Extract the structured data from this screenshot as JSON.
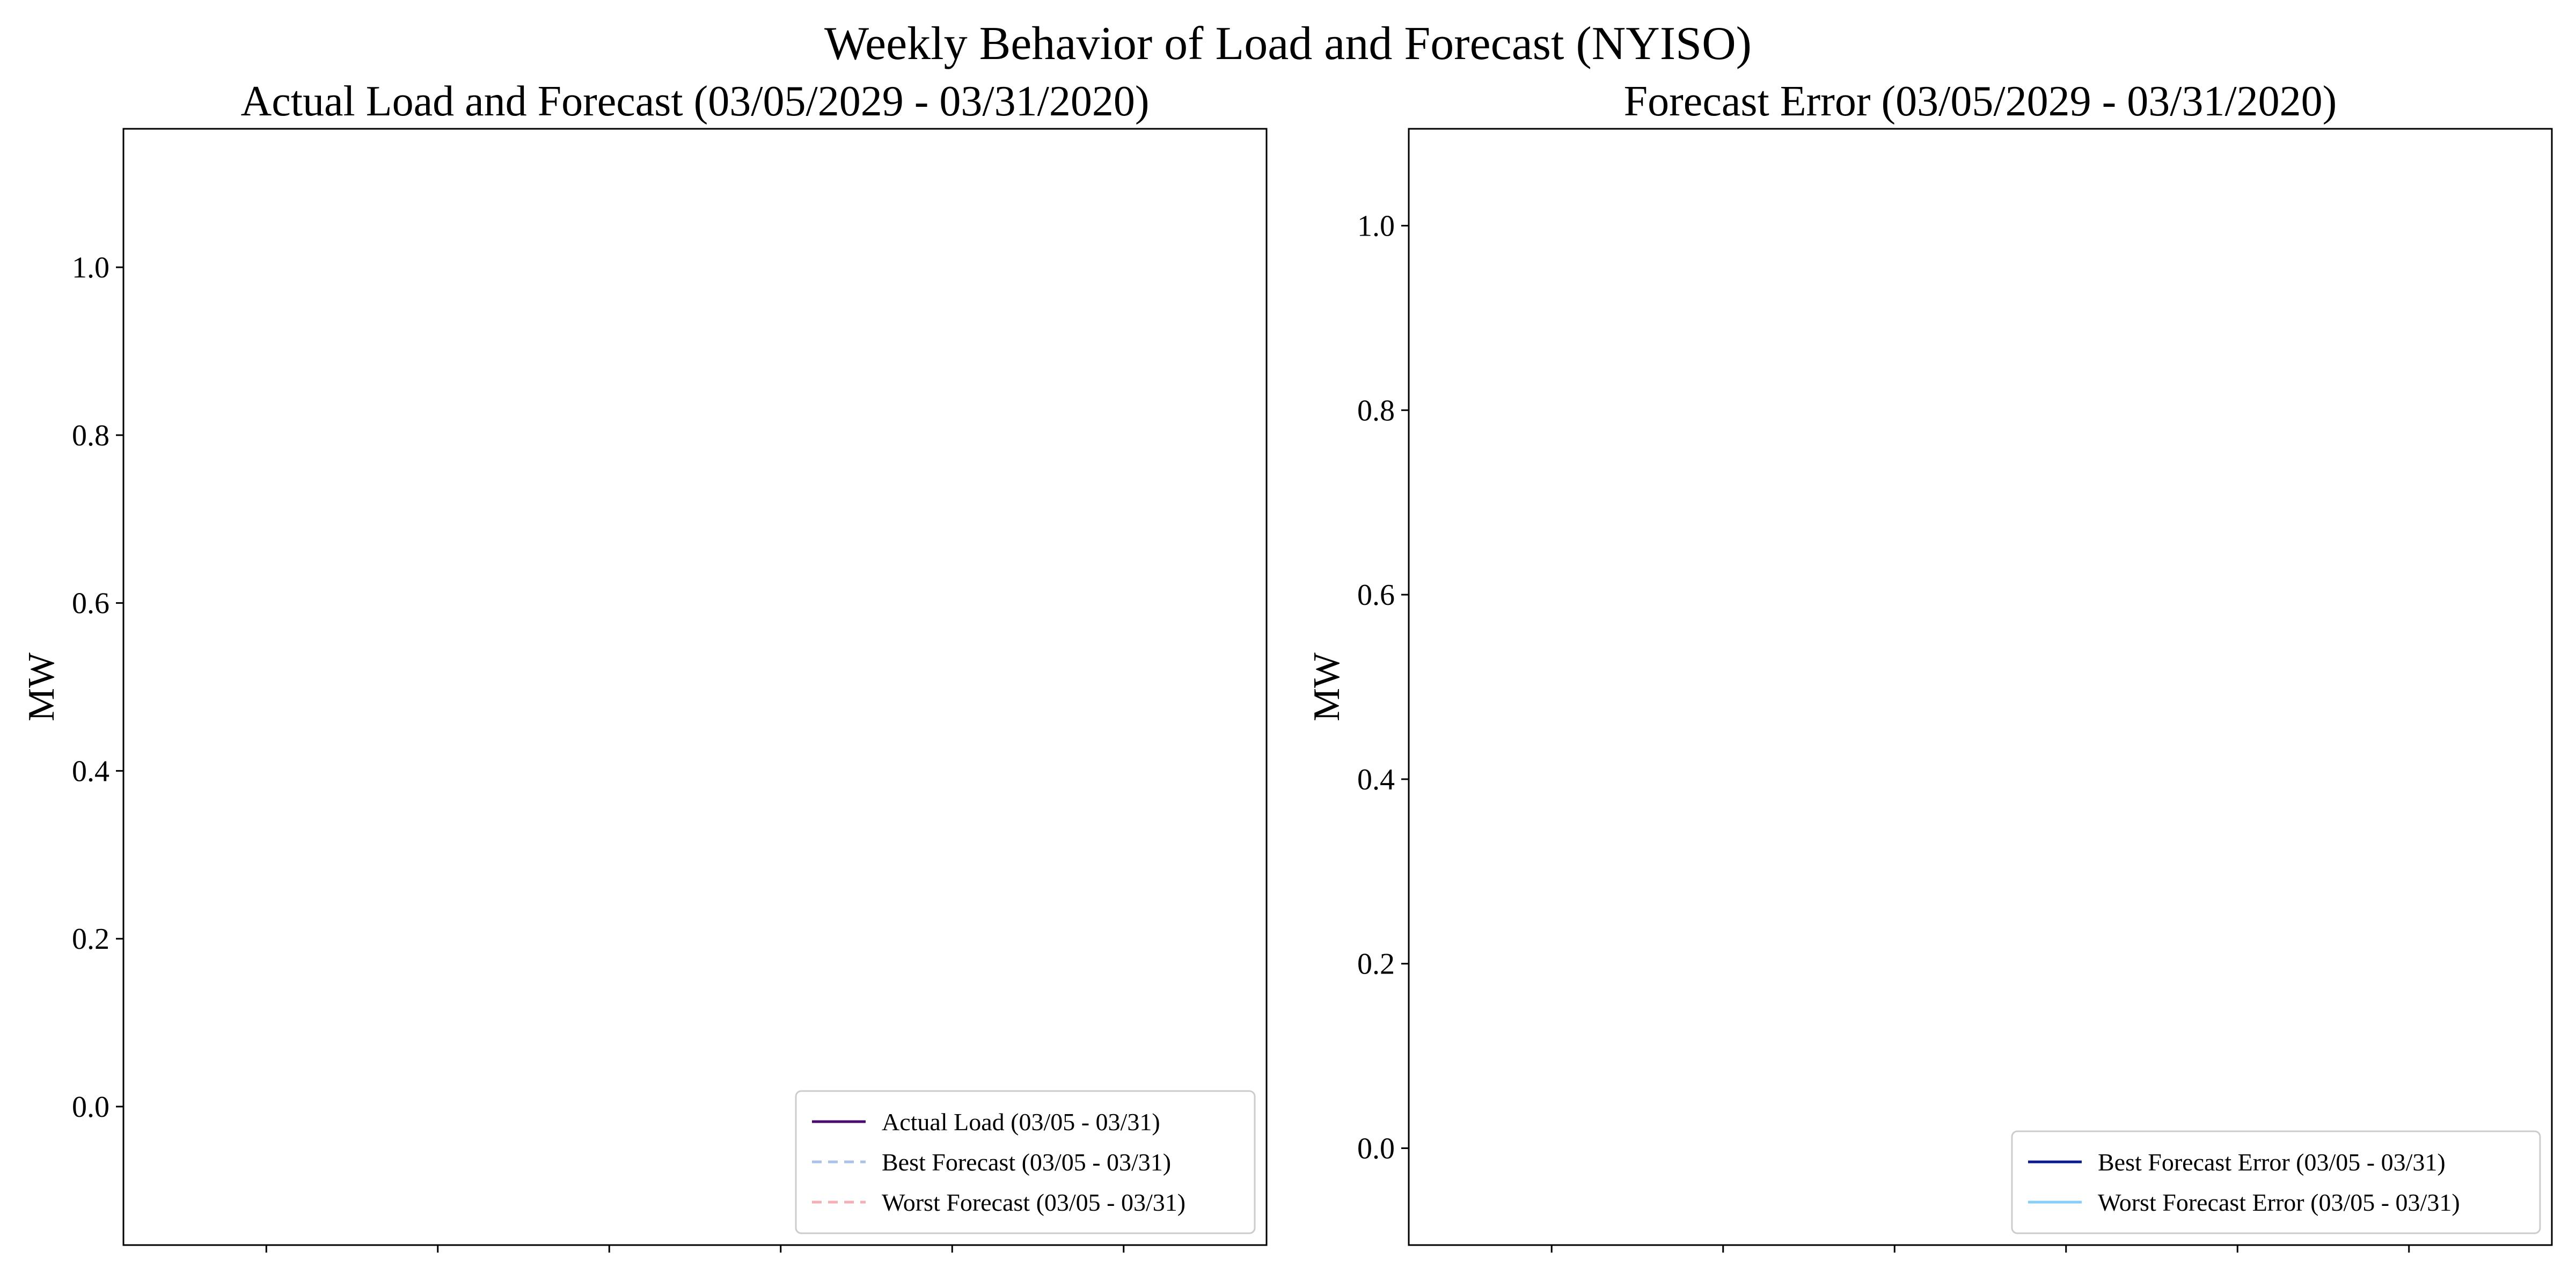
{
  "figure_title": "Weekly Behavior of Load and Forecast (NYISO)",
  "chart_data": [
    {
      "type": "line",
      "title": "Actual Load and Forecast (03/05/2029 - 03/31/2020)",
      "xlabel": "",
      "ylabel": "MW",
      "ylim": [
        -0.165,
        1.165
      ],
      "yticks": [
        "0.0",
        "0.2",
        "0.4",
        "0.6",
        "0.8",
        "1.0"
      ],
      "ytick_values": [
        0.0,
        0.2,
        0.4,
        0.6,
        0.8,
        1.0
      ],
      "xtick_count": 6,
      "grid": false,
      "legend_position": "lower-right",
      "series": [
        {
          "name": "Actual Load (03/05 - 03/31)",
          "color": "#4b0a6e",
          "style": "solid",
          "values": []
        },
        {
          "name": "Best Forecast (03/05 - 03/31)",
          "color": "#a9c2e8",
          "style": "dashed",
          "values": []
        },
        {
          "name": "Worst Forecast (03/05 - 03/31)",
          "color": "#f4aeb6",
          "style": "dashed",
          "values": []
        }
      ]
    },
    {
      "type": "line",
      "title": "Forecast Error (03/05/2029 - 03/31/2020)",
      "xlabel": "",
      "ylabel": "MW",
      "ylim": [
        -0.105,
        1.105
      ],
      "yticks": [
        "0.0",
        "0.2",
        "0.4",
        "0.6",
        "0.8",
        "1.0"
      ],
      "ytick_values": [
        0.0,
        0.2,
        0.4,
        0.6,
        0.8,
        1.0
      ],
      "xtick_count": 6,
      "grid": false,
      "legend_position": "lower-right",
      "series": [
        {
          "name": "Best Forecast Error (03/05 - 03/31)",
          "color": "#0b1a8c",
          "style": "solid",
          "values": []
        },
        {
          "name": "Worst Forecast Error (03/05 - 03/31)",
          "color": "#87cefa",
          "style": "solid",
          "values": []
        }
      ]
    }
  ]
}
